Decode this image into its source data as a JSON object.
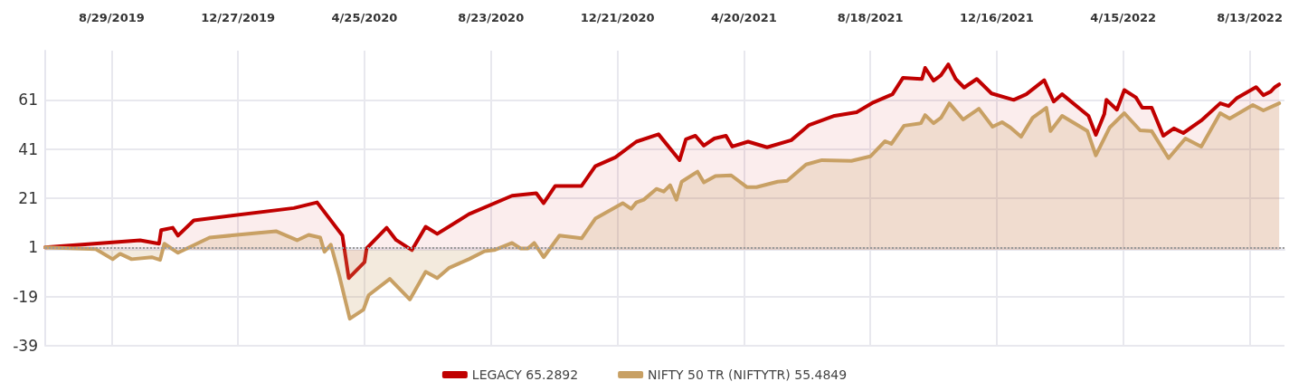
{
  "chart_data": {
    "type": "area",
    "xlim": [
      "2019-06-27",
      "2022-09-15"
    ],
    "xticks": [
      {
        "value": "2019-08-29",
        "label": "8/29/2019"
      },
      {
        "value": "2019-12-27",
        "label": "12/27/2019"
      },
      {
        "value": "2020-04-25",
        "label": "4/25/2020"
      },
      {
        "value": "2020-08-23",
        "label": "8/23/2020"
      },
      {
        "value": "2020-12-21",
        "label": "12/21/2020"
      },
      {
        "value": "2021-04-20",
        "label": "4/20/2021"
      },
      {
        "value": "2021-08-18",
        "label": "8/18/2021"
      },
      {
        "value": "2021-12-16",
        "label": "12/16/2021"
      },
      {
        "value": "2022-04-15",
        "label": "4/15/2022"
      },
      {
        "value": "2022-08-13",
        "label": "8/13/2022"
      }
    ],
    "ylim": [
      -39,
      81
    ],
    "yticks": [
      -39,
      -19,
      1,
      21,
      41,
      61
    ],
    "grid": true,
    "legend": "bottom",
    "marker": "none",
    "line_style": "solid",
    "ref_lines": [
      {
        "axis": "y",
        "value": 1,
        "color": "#999999",
        "line_style": "dotted"
      }
    ],
    "series": [
      {
        "name": "LEGACY 65.2892",
        "color": "#c00000",
        "x": [
          "2019-06-27",
          "2019-09-25",
          "2019-10-13",
          "2019-10-15",
          "2019-10-26",
          "2019-10-31",
          "2019-11-15",
          "2020-02-18",
          "2020-03-11",
          "2020-04-04",
          "2020-04-10",
          "2020-04-25",
          "2020-04-27",
          "2020-05-16",
          "2020-05-25",
          "2020-06-09",
          "2020-06-22",
          "2020-07-03",
          "2020-08-02",
          "2020-09-12",
          "2020-10-05",
          "2020-10-12",
          "2020-10-23",
          "2020-11-17",
          "2020-11-30",
          "2020-12-19",
          "2021-01-08",
          "2021-01-29",
          "2021-02-18",
          "2021-02-24",
          "2021-03-05",
          "2021-03-13",
          "2021-03-23",
          "2021-04-03",
          "2021-04-09",
          "2021-04-24",
          "2021-05-12",
          "2021-06-04",
          "2021-06-21",
          "2021-07-15",
          "2021-08-05",
          "2021-08-21",
          "2021-09-08",
          "2021-09-18",
          "2021-10-06",
          "2021-10-09",
          "2021-10-17",
          "2021-10-24",
          "2021-10-31",
          "2021-11-07",
          "2021-11-15",
          "2021-11-27",
          "2021-12-11",
          "2022-01-01",
          "2022-01-13",
          "2022-01-30",
          "2022-02-08",
          "2022-02-16",
          "2022-03-13",
          "2022-03-20",
          "2022-03-28",
          "2022-03-30",
          "2022-04-09",
          "2022-04-16",
          "2022-04-27",
          "2022-05-03",
          "2022-05-12",
          "2022-05-23",
          "2022-06-02",
          "2022-06-11",
          "2022-06-28",
          "2022-07-16",
          "2022-07-24",
          "2022-08-01",
          "2022-08-19",
          "2022-08-26",
          "2022-09-02",
          "2022-09-06",
          "2022-09-10"
        ],
        "values": [
          1,
          3.9,
          2.5,
          8,
          9,
          5.8,
          12,
          17,
          19.3,
          5.8,
          -11.5,
          -5,
          0.6,
          9,
          4,
          -0.1,
          9.4,
          6.5,
          14.5,
          22,
          23,
          19,
          26,
          26,
          34,
          37.6,
          44,
          47,
          36.5,
          45,
          46.4,
          42.4,
          45.3,
          46.4,
          42,
          44,
          41.7,
          44.6,
          50.8,
          54.5,
          56,
          60,
          63.3,
          70,
          69.5,
          74,
          68.8,
          71,
          75.4,
          69.5,
          66,
          69.5,
          63.6,
          61,
          63.3,
          69,
          60.3,
          63.3,
          54.5,
          46.8,
          55.2,
          61,
          57,
          65,
          62,
          57.8,
          57.8,
          46.4,
          49.4,
          47.5,
          52.6,
          59.6,
          58.5,
          61.8,
          66.2,
          62.9,
          64.4,
          66.2,
          67.3
        ]
      },
      {
        "name": "NIFTY 50 TR (NIFTYTR) 55.4849",
        "color": "#c8a064",
        "x": [
          "2019-06-27",
          "2019-08-14",
          "2019-08-30",
          "2019-09-06",
          "2019-09-17",
          "2019-10-06",
          "2019-10-14",
          "2019-10-18",
          "2019-10-31",
          "2019-11-30",
          "2020-02-01",
          "2020-02-21",
          "2020-03-03",
          "2020-03-14",
          "2020-03-18",
          "2020-03-24",
          "2020-04-01",
          "2020-04-11",
          "2020-04-24",
          "2020-04-29",
          "2020-05-19",
          "2020-06-07",
          "2020-06-22",
          "2020-07-03",
          "2020-07-14",
          "2020-08-02",
          "2020-08-17",
          "2020-08-26",
          "2020-09-12",
          "2020-09-20",
          "2020-09-27",
          "2020-10-03",
          "2020-10-12",
          "2020-10-27",
          "2020-11-17",
          "2020-11-30",
          "2020-12-26",
          "2021-01-03",
          "2021-01-08",
          "2021-01-15",
          "2021-01-27",
          "2021-02-03",
          "2021-02-09",
          "2021-02-15",
          "2021-02-20",
          "2021-03-07",
          "2021-03-13",
          "2021-03-24",
          "2021-04-08",
          "2021-04-23",
          "2021-05-02",
          "2021-05-22",
          "2021-05-31",
          "2021-06-18",
          "2021-07-03",
          "2021-07-31",
          "2021-08-18",
          "2021-09-01",
          "2021-09-07",
          "2021-09-19",
          "2021-10-05",
          "2021-10-09",
          "2021-10-17",
          "2021-10-24",
          "2021-11-01",
          "2021-11-14",
          "2021-11-29",
          "2021-12-12",
          "2021-12-21",
          "2021-12-29",
          "2022-01-08",
          "2022-01-19",
          "2022-02-01",
          "2022-02-05",
          "2022-02-16",
          "2022-03-12",
          "2022-03-20",
          "2022-04-02",
          "2022-04-16",
          "2022-05-01",
          "2022-05-12",
          "2022-05-28",
          "2022-06-13",
          "2022-06-28",
          "2022-07-16",
          "2022-07-25",
          "2022-08-16",
          "2022-08-26",
          "2022-09-10"
        ],
        "values": [
          1,
          0.3,
          -3.8,
          -1.6,
          -3.8,
          -3,
          -4.1,
          2.5,
          -1.2,
          5,
          7.6,
          3.9,
          6.1,
          5,
          -0.8,
          2.1,
          -10.4,
          -28,
          -24.3,
          -18.4,
          -11.8,
          -20.2,
          -8.9,
          -11.5,
          -7.4,
          -3.8,
          -0.5,
          -0.1,
          2.8,
          0.6,
          0.6,
          2.8,
          -3,
          5.8,
          4.7,
          12.7,
          19,
          16.7,
          19.3,
          20.4,
          24.8,
          23.7,
          26.3,
          20.4,
          27.7,
          31.8,
          27.4,
          30,
          30.3,
          25.5,
          25.5,
          27.7,
          28.1,
          34.7,
          36.5,
          36.2,
          38,
          44.2,
          43.1,
          50.5,
          51.5,
          54.8,
          51.5,
          53.7,
          59.6,
          53,
          57.4,
          50.1,
          51.9,
          49.7,
          46,
          53.7,
          57.8,
          48.3,
          54.5,
          48.3,
          38.4,
          49.7,
          55.6,
          48.6,
          48.3,
          37.3,
          45.3,
          42,
          55.6,
          53.4,
          58.9,
          56.7,
          59.6
        ]
      }
    ]
  }
}
